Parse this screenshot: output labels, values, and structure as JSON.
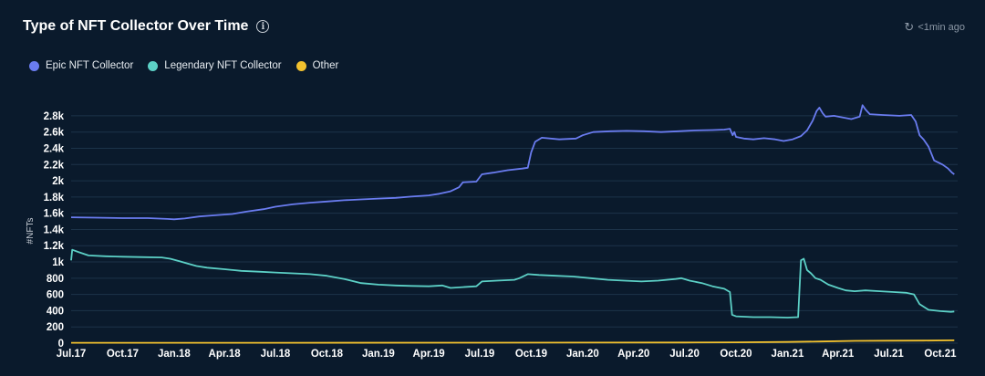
{
  "header": {
    "title": "Type of NFT Collector Over Time",
    "info_icon": "info-icon",
    "refresh_icon": "refresh-clock-icon",
    "updated": "<1min ago"
  },
  "colors": {
    "background": "#0a1a2c",
    "grid": "#1c3349",
    "epic": "#6a7cf0",
    "legendary": "#5cd0c6",
    "other": "#f2c12e"
  },
  "chart_data": {
    "type": "line",
    "title": "Type of NFT Collector Over Time",
    "xlabel": "",
    "ylabel": "#NFTs",
    "ylim": [
      0,
      2900
    ],
    "grid": true,
    "legend_position": "top-left",
    "x_ticks": [
      "Jul.17",
      "Oct.17",
      "Jan.18",
      "Apr.18",
      "Jul.18",
      "Oct.18",
      "Jan.19",
      "Apr.19",
      "Jul.19",
      "Oct.19",
      "Jan.20",
      "Apr.20",
      "Jul.20",
      "Oct.20",
      "Jan.21",
      "Apr.21",
      "Jul.21",
      "Oct.21"
    ],
    "y_ticks": [
      {
        "value": 0,
        "label": "0"
      },
      {
        "value": 200,
        "label": "200"
      },
      {
        "value": 400,
        "label": "400"
      },
      {
        "value": 600,
        "label": "600"
      },
      {
        "value": 800,
        "label": "800"
      },
      {
        "value": 1000,
        "label": "1k"
      },
      {
        "value": 1200,
        "label": "1.2k"
      },
      {
        "value": 1400,
        "label": "1.4k"
      },
      {
        "value": 1600,
        "label": "1.6k"
      },
      {
        "value": 1800,
        "label": "1.8k"
      },
      {
        "value": 2000,
        "label": "2k"
      },
      {
        "value": 2200,
        "label": "2.2k"
      },
      {
        "value": 2400,
        "label": "2.4k"
      },
      {
        "value": 2600,
        "label": "2.6k"
      },
      {
        "value": 2800,
        "label": "2.8k"
      }
    ],
    "series": [
      {
        "name": "Epic NFT Collector",
        "color": "#6a7cf0",
        "points": [
          [
            "2017-07-01",
            1550
          ],
          [
            "2017-08-15",
            1545
          ],
          [
            "2017-10-01",
            1540
          ],
          [
            "2017-11-15",
            1540
          ],
          [
            "2017-12-20",
            1530
          ],
          [
            "2018-01-01",
            1525
          ],
          [
            "2018-01-20",
            1535
          ],
          [
            "2018-02-15",
            1560
          ],
          [
            "2018-03-15",
            1575
          ],
          [
            "2018-04-15",
            1590
          ],
          [
            "2018-05-10",
            1620
          ],
          [
            "2018-06-10",
            1650
          ],
          [
            "2018-07-01",
            1680
          ],
          [
            "2018-08-01",
            1710
          ],
          [
            "2018-09-01",
            1730
          ],
          [
            "2018-10-01",
            1745
          ],
          [
            "2018-11-01",
            1760
          ],
          [
            "2018-12-01",
            1770
          ],
          [
            "2019-01-01",
            1780
          ],
          [
            "2019-02-01",
            1790
          ],
          [
            "2019-03-01",
            1805
          ],
          [
            "2019-04-01",
            1820
          ],
          [
            "2019-04-20",
            1840
          ],
          [
            "2019-05-10",
            1870
          ],
          [
            "2019-05-25",
            1920
          ],
          [
            "2019-06-01",
            1980
          ],
          [
            "2019-06-25",
            1990
          ],
          [
            "2019-07-05",
            2080
          ],
          [
            "2019-07-25",
            2100
          ],
          [
            "2019-08-20",
            2130
          ],
          [
            "2019-09-15",
            2150
          ],
          [
            "2019-09-25",
            2160
          ],
          [
            "2019-10-01",
            2350
          ],
          [
            "2019-10-08",
            2480
          ],
          [
            "2019-10-20",
            2530
          ],
          [
            "2019-11-20",
            2510
          ],
          [
            "2019-12-20",
            2520
          ],
          [
            "2020-01-01",
            2560
          ],
          [
            "2020-01-20",
            2600
          ],
          [
            "2020-02-20",
            2610
          ],
          [
            "2020-03-20",
            2615
          ],
          [
            "2020-04-20",
            2610
          ],
          [
            "2020-05-20",
            2600
          ],
          [
            "2020-06-20",
            2610
          ],
          [
            "2020-07-20",
            2620
          ],
          [
            "2020-08-20",
            2625
          ],
          [
            "2020-09-10",
            2630
          ],
          [
            "2020-09-20",
            2640
          ],
          [
            "2020-09-25",
            2560
          ],
          [
            "2020-09-28",
            2600
          ],
          [
            "2020-10-01",
            2540
          ],
          [
            "2020-10-15",
            2520
          ],
          [
            "2020-11-01",
            2510
          ],
          [
            "2020-11-20",
            2525
          ],
          [
            "2020-12-10",
            2510
          ],
          [
            "2020-12-25",
            2490
          ],
          [
            "2021-01-10",
            2510
          ],
          [
            "2021-01-25",
            2550
          ],
          [
            "2021-02-05",
            2620
          ],
          [
            "2021-02-15",
            2740
          ],
          [
            "2021-02-22",
            2860
          ],
          [
            "2021-02-27",
            2900
          ],
          [
            "2021-03-05",
            2830
          ],
          [
            "2021-03-10",
            2790
          ],
          [
            "2021-03-25",
            2800
          ],
          [
            "2021-04-10",
            2780
          ],
          [
            "2021-04-25",
            2760
          ],
          [
            "2021-05-10",
            2790
          ],
          [
            "2021-05-15",
            2930
          ],
          [
            "2021-05-20",
            2880
          ],
          [
            "2021-05-28",
            2820
          ],
          [
            "2021-06-20",
            2810
          ],
          [
            "2021-07-20",
            2800
          ],
          [
            "2021-08-10",
            2810
          ],
          [
            "2021-08-18",
            2730
          ],
          [
            "2021-08-25",
            2560
          ],
          [
            "2021-09-01",
            2510
          ],
          [
            "2021-09-10",
            2420
          ],
          [
            "2021-09-20",
            2250
          ],
          [
            "2021-10-05",
            2200
          ],
          [
            "2021-10-15",
            2150
          ],
          [
            "2021-10-22",
            2100
          ],
          [
            "2021-10-26",
            2080
          ]
        ]
      },
      {
        "name": "Legendary NFT Collector",
        "color": "#5cd0c6",
        "points": [
          [
            "2017-07-01",
            1020
          ],
          [
            "2017-07-03",
            1150
          ],
          [
            "2017-07-15",
            1120
          ],
          [
            "2017-08-01",
            1080
          ],
          [
            "2017-09-01",
            1070
          ],
          [
            "2017-10-01",
            1065
          ],
          [
            "2017-11-01",
            1060
          ],
          [
            "2017-12-10",
            1055
          ],
          [
            "2017-12-25",
            1040
          ],
          [
            "2018-01-10",
            1010
          ],
          [
            "2018-01-25",
            980
          ],
          [
            "2018-02-10",
            950
          ],
          [
            "2018-03-01",
            930
          ],
          [
            "2018-04-01",
            910
          ],
          [
            "2018-05-01",
            890
          ],
          [
            "2018-06-01",
            880
          ],
          [
            "2018-07-01",
            870
          ],
          [
            "2018-08-01",
            860
          ],
          [
            "2018-09-01",
            850
          ],
          [
            "2018-10-01",
            830
          ],
          [
            "2018-11-01",
            790
          ],
          [
            "2018-12-01",
            740
          ],
          [
            "2019-01-01",
            720
          ],
          [
            "2019-02-01",
            710
          ],
          [
            "2019-03-01",
            705
          ],
          [
            "2019-04-01",
            700
          ],
          [
            "2019-04-25",
            710
          ],
          [
            "2019-05-10",
            680
          ],
          [
            "2019-06-01",
            690
          ],
          [
            "2019-06-25",
            700
          ],
          [
            "2019-07-05",
            760
          ],
          [
            "2019-08-01",
            770
          ],
          [
            "2019-09-01",
            780
          ],
          [
            "2019-09-10",
            800
          ],
          [
            "2019-09-25",
            850
          ],
          [
            "2019-10-15",
            840
          ],
          [
            "2019-11-15",
            830
          ],
          [
            "2019-12-15",
            820
          ],
          [
            "2020-01-15",
            800
          ],
          [
            "2020-02-15",
            780
          ],
          [
            "2020-03-15",
            770
          ],
          [
            "2020-04-15",
            760
          ],
          [
            "2020-05-15",
            770
          ],
          [
            "2020-06-15",
            790
          ],
          [
            "2020-06-25",
            800
          ],
          [
            "2020-07-10",
            770
          ],
          [
            "2020-08-01",
            740
          ],
          [
            "2020-08-20",
            700
          ],
          [
            "2020-09-10",
            670
          ],
          [
            "2020-09-20",
            630
          ],
          [
            "2020-09-24",
            350
          ],
          [
            "2020-10-01",
            330
          ],
          [
            "2020-11-01",
            320
          ],
          [
            "2020-12-01",
            320
          ],
          [
            "2021-01-01",
            315
          ],
          [
            "2021-01-20",
            320
          ],
          [
            "2021-01-25",
            1020
          ],
          [
            "2021-01-30",
            1040
          ],
          [
            "2021-02-05",
            900
          ],
          [
            "2021-02-12",
            860
          ],
          [
            "2021-02-20",
            800
          ],
          [
            "2021-03-01",
            780
          ],
          [
            "2021-03-15",
            720
          ],
          [
            "2021-04-01",
            680
          ],
          [
            "2021-04-15",
            650
          ],
          [
            "2021-05-01",
            640
          ],
          [
            "2021-05-20",
            650
          ],
          [
            "2021-06-15",
            640
          ],
          [
            "2021-07-10",
            630
          ],
          [
            "2021-08-01",
            620
          ],
          [
            "2021-08-15",
            600
          ],
          [
            "2021-08-25",
            480
          ],
          [
            "2021-09-10",
            410
          ],
          [
            "2021-10-01",
            395
          ],
          [
            "2021-10-20",
            385
          ],
          [
            "2021-10-26",
            390
          ]
        ]
      },
      {
        "name": "Other",
        "color": "#f2c12e",
        "points": [
          [
            "2017-07-01",
            5
          ],
          [
            "2018-07-01",
            5
          ],
          [
            "2019-07-01",
            6
          ],
          [
            "2020-07-01",
            8
          ],
          [
            "2020-10-01",
            10
          ],
          [
            "2021-01-01",
            15
          ],
          [
            "2021-03-01",
            20
          ],
          [
            "2021-05-01",
            28
          ],
          [
            "2021-07-01",
            30
          ],
          [
            "2021-09-01",
            32
          ],
          [
            "2021-10-26",
            35
          ]
        ]
      }
    ]
  }
}
